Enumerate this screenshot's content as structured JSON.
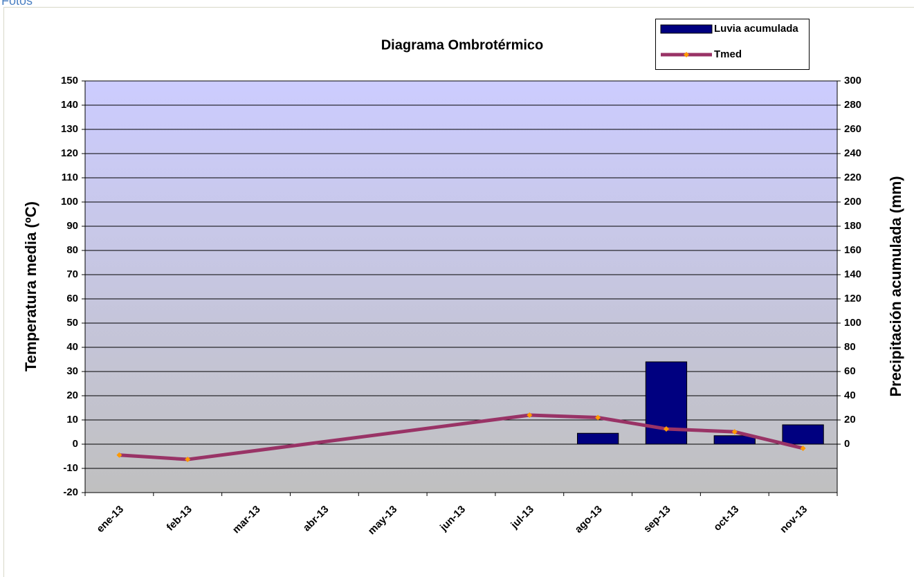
{
  "header": {
    "text": "Fotos"
  },
  "chart_data": {
    "type": "bar_line",
    "title": "Diagrama Ombrotérmico",
    "y_label": "Temperatura media (ºC)",
    "y2_label": "Precipitación acumulada (mm)",
    "categories": [
      "ene-13",
      "feb-13",
      "mar-13",
      "abr-13",
      "may-13",
      "jun-13",
      "jul-13",
      "ago-13",
      "sep-13",
      "oct-13",
      "nov-13"
    ],
    "series": [
      {
        "name": "Luvia acumulada",
        "kind": "bar",
        "axis": "y2",
        "color": "#000080",
        "values": [
          null,
          null,
          null,
          null,
          null,
          null,
          null,
          9,
          68,
          7,
          16
        ]
      },
      {
        "name": "Tmed",
        "kind": "line",
        "color": "#993366",
        "marker_color": "#ff9900",
        "values": [
          -4.5,
          -6.3,
          null,
          null,
          null,
          null,
          12,
          11,
          6.3,
          5.1,
          -1.7
        ]
      }
    ],
    "connect_gaps": true,
    "ylim": [
      -20,
      150
    ],
    "yticks": [
      -20,
      -10,
      0,
      10,
      20,
      30,
      40,
      50,
      60,
      70,
      80,
      90,
      100,
      110,
      120,
      130,
      140,
      150
    ],
    "y2lim": [
      -40,
      300
    ],
    "y2ticks": [
      0,
      20,
      40,
      60,
      80,
      100,
      120,
      140,
      160,
      180,
      200,
      220,
      240,
      260,
      280,
      300
    ],
    "grid": true,
    "legend": "top-right"
  }
}
